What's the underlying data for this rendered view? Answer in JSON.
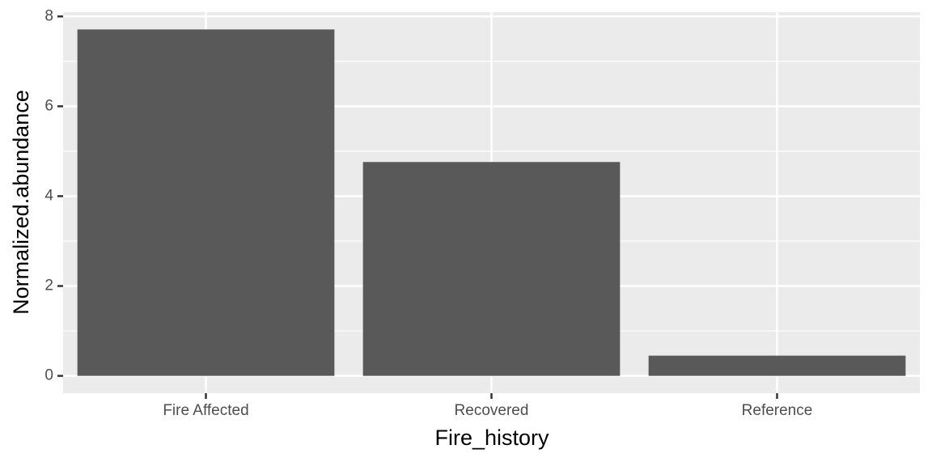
{
  "chart_data": {
    "type": "bar",
    "x_label": "Fire_history",
    "y_label": "Normalized.abundance",
    "categories": [
      "Fire Affected",
      "Recovered",
      "Reference"
    ],
    "values": [
      7.71,
      4.76,
      0.45
    ],
    "color": "#595959",
    "ylim": [
      -0.3855,
      8.0955
    ],
    "yticks": [
      0,
      2,
      4,
      6,
      8
    ],
    "grid": true
  }
}
